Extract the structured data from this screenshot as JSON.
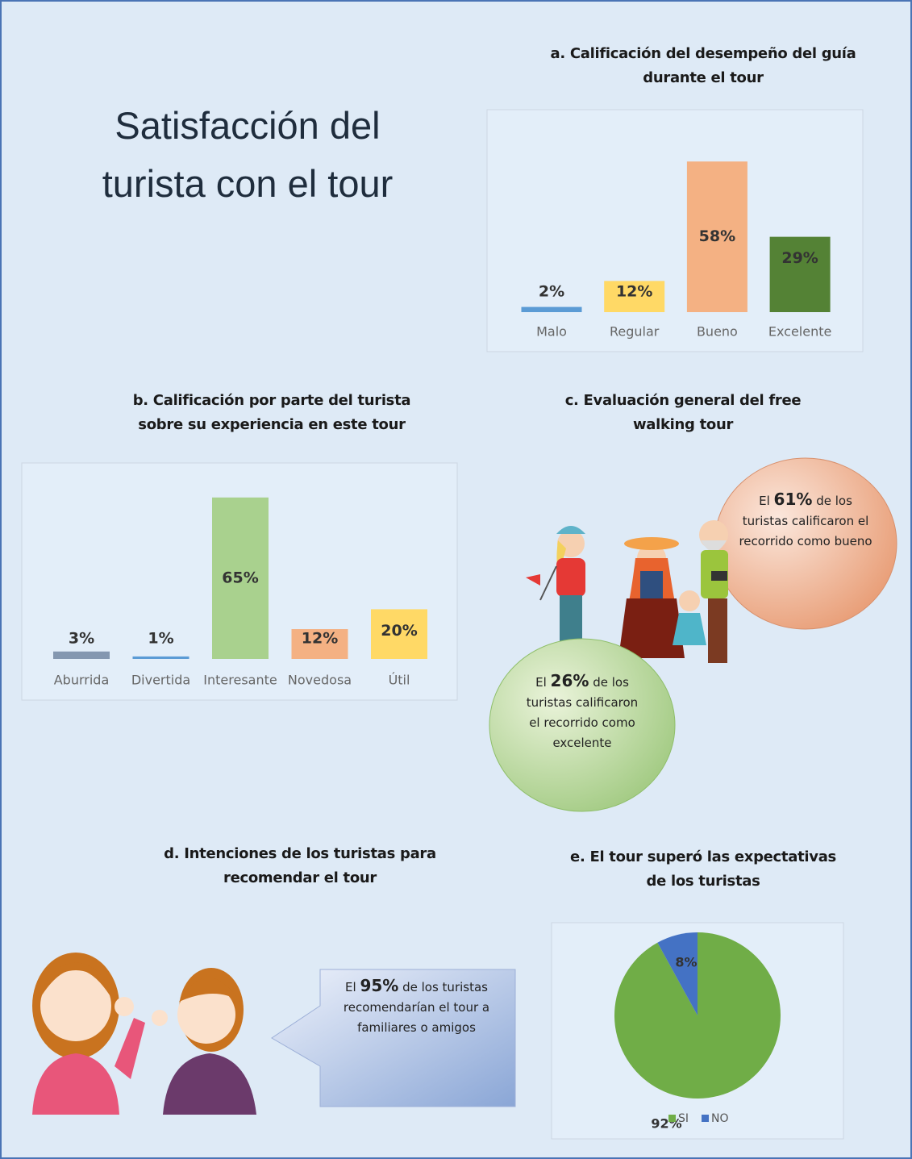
{
  "title": "Satisfacción del turista con el tour",
  "chart_data": [
    {
      "type": "bar",
      "title": "a. Calificación del desempeño del guía durante el tour",
      "categories": [
        "Malo",
        "Regular",
        "Bueno",
        "Excelente"
      ],
      "values": [
        2,
        12,
        58,
        29
      ],
      "value_labels": [
        "2%",
        "12%",
        "58%",
        "29%"
      ],
      "colors": [
        "#5b9bd5",
        "#ffd966",
        "#f4b183",
        "#548235"
      ]
    },
    {
      "type": "bar",
      "title": "b. Calificación por parte del turista sobre su experiencia en este tour",
      "categories": [
        "Aburrida",
        "Divertida",
        "Interesante",
        "Novedosa",
        "Útil"
      ],
      "values": [
        3,
        1,
        65,
        12,
        20
      ],
      "value_labels": [
        "3%",
        "1%",
        "65%",
        "12%",
        "20%"
      ],
      "colors": [
        "#8497b0",
        "#5b9bd5",
        "#a9d18e",
        "#f4b183",
        "#ffd966"
      ]
    },
    {
      "type": "pie",
      "title": "e. El tour superó las expectativas de los turistas",
      "categories": [
        "SI",
        "NO"
      ],
      "values": [
        92,
        8
      ],
      "value_labels": [
        "92%",
        "8%"
      ],
      "colors": [
        "#70ad47",
        "#4472c4"
      ],
      "legend": "bottom"
    }
  ],
  "section_c": {
    "title": "c. Evaluación general del free walking tour",
    "callouts": [
      {
        "before": "El",
        "value": "61%",
        "after": "de los turistas calificaron el recorrido como bueno"
      },
      {
        "before": "El",
        "value": "26%",
        "after": "de los turistas calificaron el recorrido como excelente"
      }
    ]
  },
  "section_d": {
    "title": "d. Intenciones de los turistas para recomendar el tour",
    "callout": {
      "before": "El",
      "value": "95%",
      "after": "de los turistas recomendarían el tour a familiares o amigos"
    }
  }
}
